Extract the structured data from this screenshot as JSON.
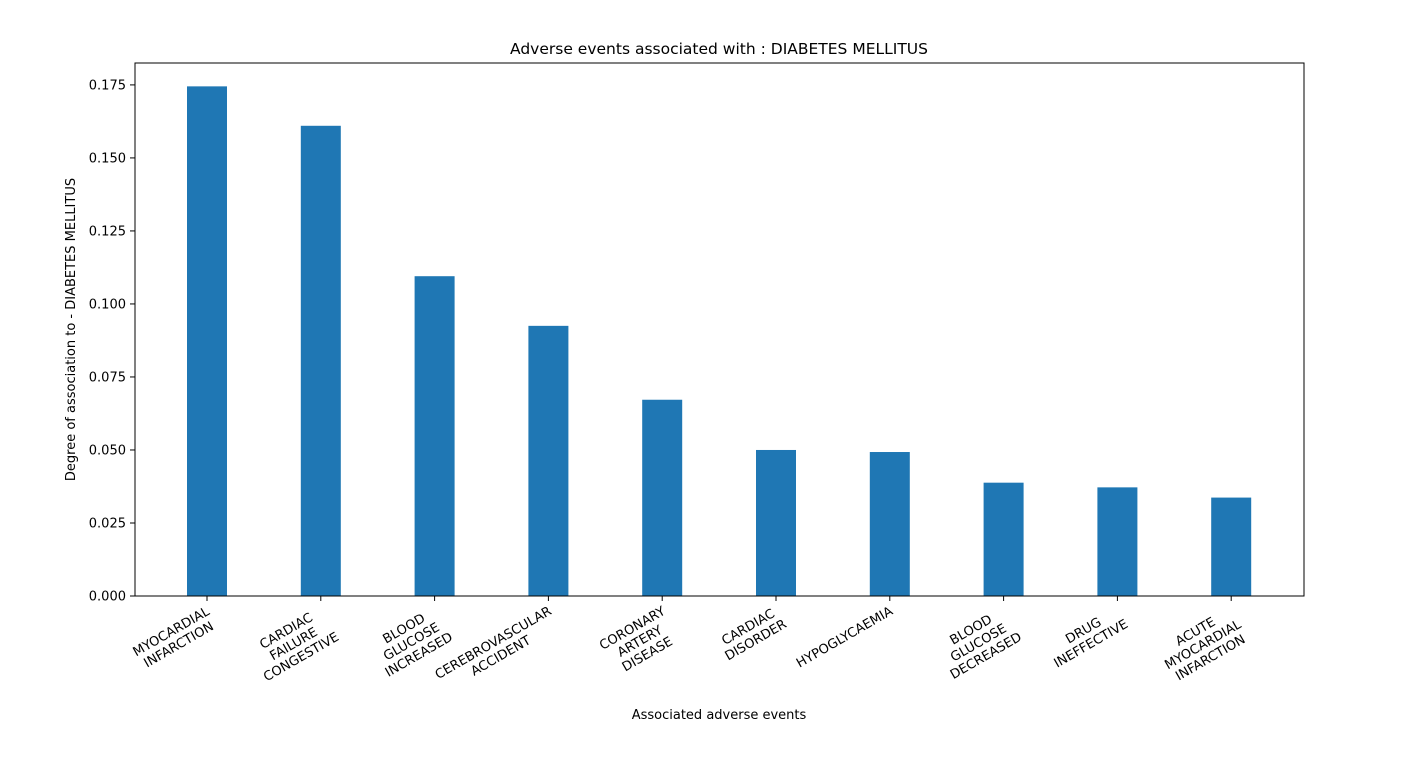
{
  "chart_data": {
    "type": "bar",
    "title": "Adverse events associated with : DIABETES MELLITUS",
    "xlabel": "Associated adverse events",
    "ylabel": "Degree of association to - DIABETES MELLITUS",
    "categories": [
      [
        "MYOCARDIAL",
        "INFARCTION"
      ],
      [
        "CARDIAC",
        "FAILURE",
        "CONGESTIVE"
      ],
      [
        "BLOOD",
        "GLUCOSE",
        "INCREASED"
      ],
      [
        "CEREBROVASCULAR",
        "ACCIDENT"
      ],
      [
        "CORONARY",
        "ARTERY",
        "DISEASE"
      ],
      [
        "CARDIAC",
        "DISORDER"
      ],
      [
        "HYPOGLYCAEMIA"
      ],
      [
        "BLOOD",
        "GLUCOSE",
        "DECREASED"
      ],
      [
        "DRUG",
        "INEFFECTIVE"
      ],
      [
        "ACUTE",
        "MYOCARDIAL",
        "INFARCTION"
      ]
    ],
    "values": [
      0.1745,
      0.161,
      0.1095,
      0.0925,
      0.0672,
      0.05,
      0.0493,
      0.0388,
      0.0372,
      0.0337
    ],
    "ylim": [
      0,
      0.1825
    ],
    "yticks": [
      "0.000",
      "0.025",
      "0.050",
      "0.075",
      "0.100",
      "0.125",
      "0.150",
      "0.175"
    ],
    "grid": false,
    "bar_color": "#1f77b4"
  }
}
